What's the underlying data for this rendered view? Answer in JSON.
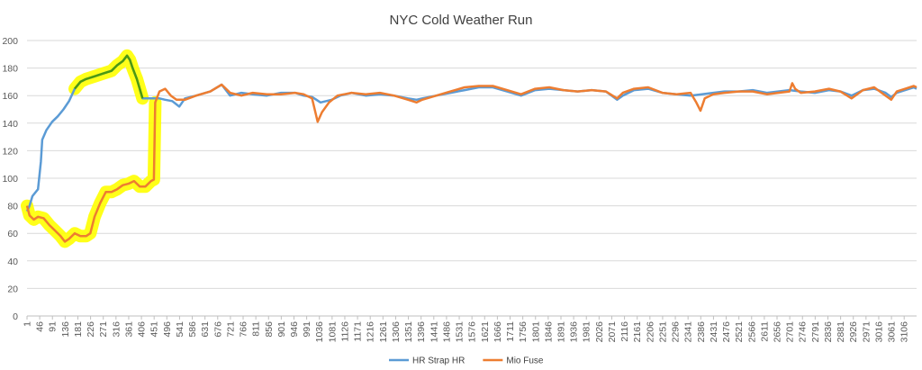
{
  "chart_data": {
    "type": "line",
    "title": "NYC Cold Weather Run",
    "xlabel": "",
    "ylabel": "",
    "ylim": [
      0,
      200
    ],
    "yticks": [
      0,
      20,
      40,
      60,
      80,
      100,
      120,
      140,
      160,
      180,
      200
    ],
    "xlim": [
      1,
      3150
    ],
    "x_tick_labels": [
      "1",
      "46",
      "91",
      "136",
      "181",
      "226",
      "271",
      "316",
      "361",
      "406",
      "451",
      "496",
      "541",
      "586",
      "631",
      "676",
      "721",
      "766",
      "811",
      "856",
      "901",
      "946",
      "991",
      "1036",
      "1081",
      "1126",
      "1171",
      "1216",
      "1261",
      "1306",
      "1351",
      "1396",
      "1441",
      "1486",
      "1531",
      "1576",
      "1621",
      "1666",
      "1711",
      "1756",
      "1801",
      "1846",
      "1891",
      "1936",
      "1981",
      "2026",
      "2071",
      "2116",
      "2161",
      "2206",
      "2251",
      "2296",
      "2341",
      "2386",
      "2431",
      "2476",
      "2521",
      "2566",
      "2611",
      "2656",
      "2701",
      "2746",
      "2791",
      "2836",
      "2881",
      "2926",
      "2971",
      "3016",
      "3061",
      "3106"
    ],
    "grid": true,
    "legend_position": "bottom",
    "highlight_color": "#ffff00",
    "highlight_line_color": "#4d9a0f",
    "series": [
      {
        "name": "HR Strap HR",
        "color": "#5b9bd5",
        "points": [
          [
            1,
            76
          ],
          [
            10,
            80
          ],
          [
            20,
            87
          ],
          [
            40,
            92
          ],
          [
            50,
            112
          ],
          [
            55,
            128
          ],
          [
            70,
            135
          ],
          [
            90,
            141
          ],
          [
            110,
            145
          ],
          [
            130,
            150
          ],
          [
            150,
            156
          ],
          [
            170,
            165
          ],
          [
            190,
            170
          ],
          [
            210,
            172
          ],
          [
            240,
            174
          ],
          [
            270,
            176
          ],
          [
            300,
            178
          ],
          [
            320,
            182
          ],
          [
            340,
            185
          ],
          [
            355,
            189
          ],
          [
            365,
            186
          ],
          [
            375,
            180
          ],
          [
            390,
            172
          ],
          [
            400,
            165
          ],
          [
            410,
            158
          ],
          [
            440,
            158
          ],
          [
            470,
            158
          ],
          [
            490,
            157
          ],
          [
            515,
            156
          ],
          [
            540,
            152
          ],
          [
            560,
            158
          ],
          [
            600,
            160
          ],
          [
            650,
            163
          ],
          [
            690,
            168
          ],
          [
            720,
            160
          ],
          [
            760,
            162
          ],
          [
            800,
            161
          ],
          [
            850,
            160
          ],
          [
            900,
            162
          ],
          [
            950,
            162
          ],
          [
            980,
            160
          ],
          [
            1010,
            159
          ],
          [
            1040,
            155
          ],
          [
            1080,
            157
          ],
          [
            1110,
            160
          ],
          [
            1150,
            162
          ],
          [
            1200,
            160
          ],
          [
            1250,
            161
          ],
          [
            1300,
            160
          ],
          [
            1350,
            158
          ],
          [
            1380,
            157
          ],
          [
            1400,
            158
          ],
          [
            1450,
            160
          ],
          [
            1500,
            162
          ],
          [
            1550,
            164
          ],
          [
            1600,
            166
          ],
          [
            1650,
            166
          ],
          [
            1700,
            163
          ],
          [
            1750,
            160
          ],
          [
            1800,
            164
          ],
          [
            1850,
            165
          ],
          [
            1900,
            164
          ],
          [
            1950,
            163
          ],
          [
            2000,
            164
          ],
          [
            2050,
            163
          ],
          [
            2090,
            157
          ],
          [
            2110,
            160
          ],
          [
            2150,
            164
          ],
          [
            2200,
            165
          ],
          [
            2250,
            162
          ],
          [
            2300,
            161
          ],
          [
            2350,
            160
          ],
          [
            2390,
            161
          ],
          [
            2430,
            162
          ],
          [
            2470,
            163
          ],
          [
            2520,
            163
          ],
          [
            2570,
            164
          ],
          [
            2620,
            162
          ],
          [
            2660,
            163
          ],
          [
            2700,
            164
          ],
          [
            2740,
            163
          ],
          [
            2790,
            162
          ],
          [
            2840,
            164
          ],
          [
            2880,
            163
          ],
          [
            2920,
            160
          ],
          [
            2960,
            164
          ],
          [
            3000,
            165
          ],
          [
            3040,
            162
          ],
          [
            3060,
            159
          ],
          [
            3080,
            162
          ],
          [
            3110,
            164
          ],
          [
            3140,
            166
          ],
          [
            3150,
            165
          ]
        ]
      },
      {
        "name": "Mio Fuse",
        "color": "#ed7d31",
        "points": [
          [
            1,
            80
          ],
          [
            10,
            73
          ],
          [
            25,
            70
          ],
          [
            40,
            72
          ],
          [
            60,
            71
          ],
          [
            80,
            66
          ],
          [
            100,
            62
          ],
          [
            120,
            58
          ],
          [
            135,
            54
          ],
          [
            150,
            56
          ],
          [
            170,
            60
          ],
          [
            190,
            58
          ],
          [
            210,
            58
          ],
          [
            225,
            60
          ],
          [
            240,
            72
          ],
          [
            260,
            82
          ],
          [
            280,
            90
          ],
          [
            300,
            90
          ],
          [
            320,
            92
          ],
          [
            340,
            95
          ],
          [
            360,
            96
          ],
          [
            380,
            98
          ],
          [
            400,
            94
          ],
          [
            420,
            94
          ],
          [
            440,
            98
          ],
          [
            450,
            99
          ],
          [
            455,
            155
          ],
          [
            470,
            163
          ],
          [
            490,
            165
          ],
          [
            510,
            160
          ],
          [
            530,
            157
          ],
          [
            560,
            157
          ],
          [
            600,
            160
          ],
          [
            650,
            163
          ],
          [
            690,
            168
          ],
          [
            720,
            162
          ],
          [
            760,
            160
          ],
          [
            800,
            162
          ],
          [
            850,
            161
          ],
          [
            900,
            161
          ],
          [
            950,
            162
          ],
          [
            980,
            161
          ],
          [
            1010,
            158
          ],
          [
            1030,
            141
          ],
          [
            1045,
            148
          ],
          [
            1070,
            155
          ],
          [
            1100,
            160
          ],
          [
            1150,
            162
          ],
          [
            1200,
            161
          ],
          [
            1250,
            162
          ],
          [
            1300,
            160
          ],
          [
            1350,
            157
          ],
          [
            1380,
            155
          ],
          [
            1400,
            157
          ],
          [
            1450,
            160
          ],
          [
            1500,
            163
          ],
          [
            1550,
            166
          ],
          [
            1600,
            167
          ],
          [
            1650,
            167
          ],
          [
            1700,
            164
          ],
          [
            1750,
            161
          ],
          [
            1800,
            165
          ],
          [
            1850,
            166
          ],
          [
            1900,
            164
          ],
          [
            1950,
            163
          ],
          [
            2000,
            164
          ],
          [
            2050,
            163
          ],
          [
            2090,
            158
          ],
          [
            2110,
            162
          ],
          [
            2150,
            165
          ],
          [
            2200,
            166
          ],
          [
            2250,
            162
          ],
          [
            2300,
            161
          ],
          [
            2350,
            162
          ],
          [
            2370,
            155
          ],
          [
            2385,
            149
          ],
          [
            2400,
            158
          ],
          [
            2430,
            161
          ],
          [
            2470,
            162
          ],
          [
            2520,
            163
          ],
          [
            2570,
            163
          ],
          [
            2620,
            161
          ],
          [
            2660,
            162
          ],
          [
            2700,
            163
          ],
          [
            2710,
            169
          ],
          [
            2720,
            165
          ],
          [
            2740,
            162
          ],
          [
            2790,
            163
          ],
          [
            2840,
            165
          ],
          [
            2880,
            163
          ],
          [
            2920,
            158
          ],
          [
            2960,
            164
          ],
          [
            3000,
            166
          ],
          [
            3040,
            160
          ],
          [
            3060,
            157
          ],
          [
            3080,
            163
          ],
          [
            3110,
            165
          ],
          [
            3140,
            167
          ],
          [
            3150,
            166
          ]
        ]
      }
    ]
  }
}
